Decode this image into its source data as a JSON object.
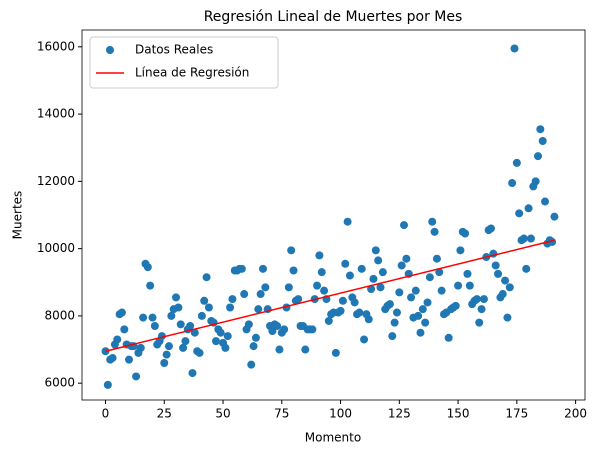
{
  "chart_data": {
    "type": "scatter",
    "title": "Regresión Lineal de Muertes por Mes",
    "xlabel": "Momento",
    "ylabel": "Muertes",
    "xlim": [
      -10,
      204
    ],
    "ylim": [
      5500,
      16500
    ],
    "xticks": [
      0,
      25,
      50,
      75,
      100,
      125,
      150,
      175,
      200
    ],
    "yticks": [
      6000,
      8000,
      10000,
      12000,
      14000,
      16000
    ],
    "legend": "upper left",
    "series": [
      {
        "name": "Datos Reales",
        "color": "#1f77b4",
        "type": "scatter",
        "x": [
          0,
          1,
          2,
          3,
          4,
          5,
          6,
          7,
          8,
          9,
          10,
          11,
          12,
          13,
          14,
          15,
          16,
          17,
          18,
          19,
          20,
          21,
          22,
          23,
          24,
          25,
          26,
          27,
          28,
          29,
          30,
          31,
          32,
          33,
          34,
          35,
          36,
          37,
          38,
          39,
          40,
          41,
          42,
          43,
          44,
          45,
          46,
          47,
          48,
          49,
          50,
          51,
          52,
          53,
          54,
          55,
          56,
          57,
          58,
          59,
          60,
          61,
          62,
          63,
          64,
          65,
          66,
          67,
          68,
          69,
          70,
          71,
          72,
          73,
          74,
          75,
          76,
          77,
          78,
          79,
          80,
          81,
          82,
          83,
          84,
          85,
          86,
          87,
          88,
          89,
          90,
          91,
          92,
          93,
          94,
          95,
          96,
          97,
          98,
          99,
          100,
          101,
          102,
          103,
          104,
          105,
          106,
          107,
          108,
          109,
          110,
          111,
          112,
          113,
          114,
          115,
          116,
          117,
          118,
          119,
          120,
          121,
          122,
          123,
          124,
          125,
          126,
          127,
          128,
          129,
          130,
          131,
          132,
          133,
          134,
          135,
          136,
          137,
          138,
          139,
          140,
          141,
          142,
          143,
          144,
          145,
          146,
          147,
          148,
          149,
          150,
          151,
          152,
          153,
          154,
          155,
          156,
          157,
          158,
          159,
          160,
          161,
          162,
          163,
          164,
          165,
          166,
          167,
          168,
          169,
          170,
          171,
          172,
          173,
          174,
          175,
          176,
          177,
          178,
          179,
          180,
          181,
          182,
          183,
          184,
          185,
          186,
          187,
          188,
          189,
          190,
          191
        ],
        "values": [
          6950,
          5950,
          6700,
          6750,
          7150,
          7300,
          8050,
          8100,
          7600,
          7150,
          6700,
          7100,
          7100,
          6200,
          6900,
          7050,
          7950,
          9550,
          9450,
          8900,
          7950,
          7700,
          7150,
          7250,
          7400,
          6600,
          6850,
          7100,
          8000,
          8200,
          8550,
          8250,
          7750,
          7050,
          7250,
          7600,
          7700,
          6300,
          7500,
          6950,
          6900,
          8000,
          8450,
          9150,
          8250,
          7850,
          7800,
          7250,
          7600,
          7500,
          7200,
          7050,
          7400,
          8250,
          8500,
          9350,
          9350,
          9400,
          9400,
          8650,
          7600,
          7750,
          6550,
          7100,
          7350,
          8200,
          8650,
          9400,
          8850,
          8200,
          7700,
          7550,
          7750,
          7700,
          7000,
          7500,
          7600,
          8250,
          8850,
          9950,
          9350,
          8450,
          8500,
          7700,
          7700,
          7000,
          7600,
          7600,
          7600,
          8500,
          8900,
          9800,
          9300,
          8750,
          8500,
          7850,
          8050,
          8100,
          6900,
          8100,
          8150,
          8450,
          9550,
          10800,
          9200,
          8550,
          8400,
          8050,
          8100,
          9400,
          7300,
          8050,
          7900,
          8800,
          9100,
          9950,
          9650,
          8850,
          9300,
          8200,
          8300,
          8350,
          7400,
          7800,
          8100,
          8700,
          9500,
          10700,
          9700,
          9250,
          8550,
          7950,
          8750,
          8000,
          7500,
          8200,
          7800,
          8400,
          9150,
          10800,
          10500,
          9700,
          9300,
          8750,
          8050,
          8100,
          7350,
          8200,
          8250,
          8300,
          8900,
          9950,
          10500,
          10450,
          9250,
          8900,
          8350,
          8450,
          8500,
          7800,
          8200,
          8500,
          9750,
          10550,
          10600,
          9850,
          9500,
          9250,
          8550,
          8650,
          9050,
          7950,
          8850,
          11950,
          15950,
          12550,
          11050,
          10250,
          10300,
          9400,
          11200,
          10300,
          11850,
          12000,
          12750,
          13550,
          13200,
          11400,
          10150,
          10250,
          10200,
          10950
        ]
      },
      {
        "name": "Línea de Regresión",
        "color": "#ff0000",
        "type": "line",
        "x": [
          0,
          191
        ],
        "values": [
          6950,
          10250
        ]
      }
    ]
  }
}
